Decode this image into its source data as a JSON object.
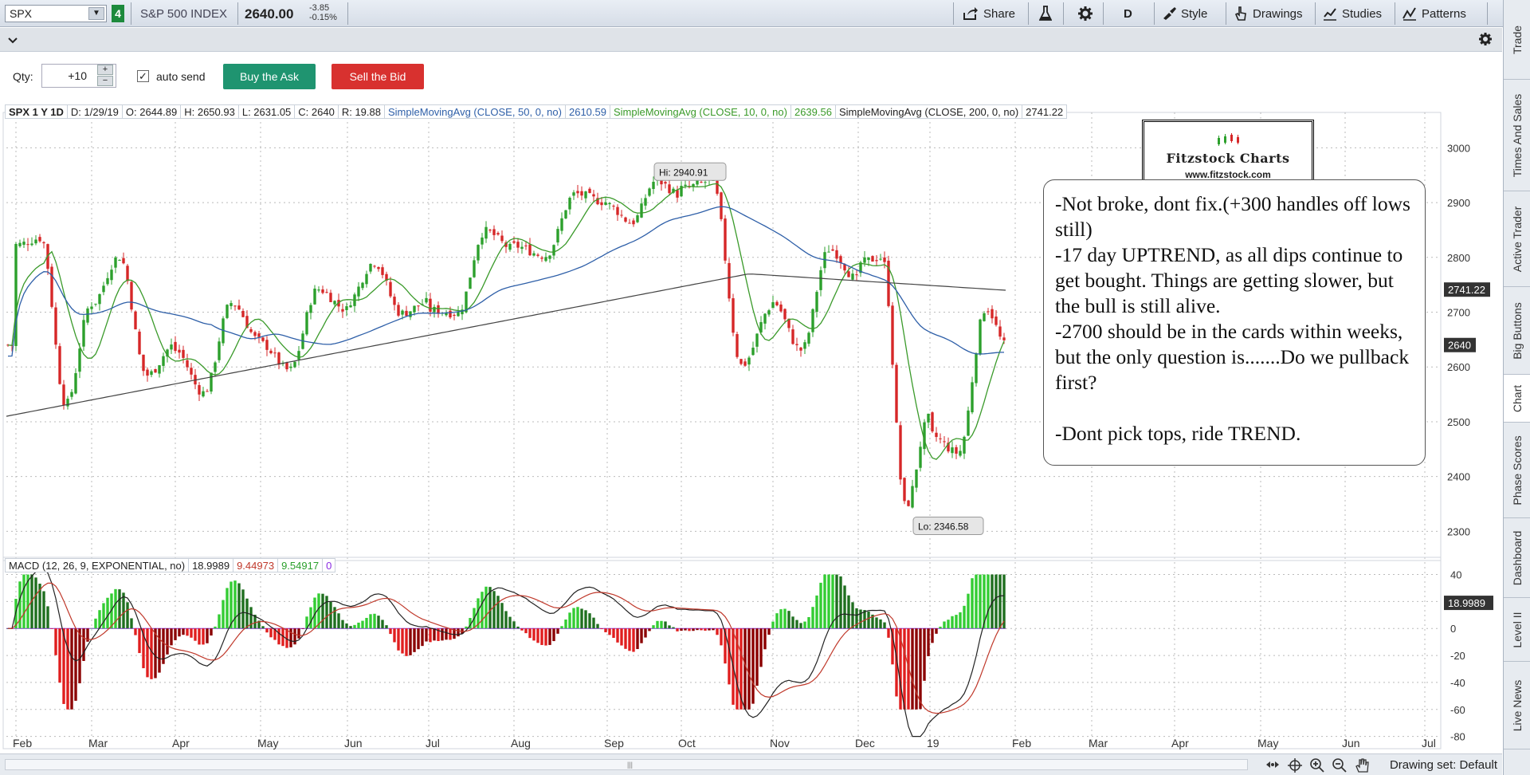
{
  "toolbar": {
    "symbol": "SPX",
    "link_badge": "4",
    "symbol_name": "S&P 500 INDEX",
    "last_price": "2640.00",
    "change": "-3.85",
    "change_pct": "-0.15%",
    "share": "Share",
    "period": "D",
    "style": "Style",
    "drawings": "Drawings",
    "studies": "Studies",
    "patterns": "Patterns"
  },
  "trade": {
    "qty_label": "Qty:",
    "qty_value": "+10",
    "auto_send": "auto send",
    "buy": "Buy the Ask",
    "sell": "Sell the Bid"
  },
  "study_header": {
    "symbol": "SPX 1 Y 1D",
    "date": "D: 1/29/19",
    "open": "O: 2644.89",
    "high": "H: 2650.93",
    "low": "L: 2631.05",
    "close": "C: 2640",
    "range": "R: 19.88",
    "sma50_label": "SimpleMovingAvg (CLOSE, 50, 0, no)",
    "sma50_value": "2610.59",
    "sma10_label": "SimpleMovingAvg (CLOSE, 10, 0, no)",
    "sma10_value": "2639.56",
    "sma200_label": "SimpleMovingAvg (CLOSE, 200, 0, no)",
    "sma200_value": "2741.22"
  },
  "macd_header": {
    "label": "MACD (12, 26, 9, EXPONENTIAL, no)",
    "value": "18.9989",
    "avg": "9.44973",
    "diff": "9.54917",
    "zero": "0"
  },
  "logo": {
    "title": "Fitzstock Charts",
    "url": "www.fitzstock.com"
  },
  "note": {
    "lines": [
      "-Not broke, dont fix.(+300 handles off lows still)",
      "-17 day UPTREND, as all dips continue to get bought.  Things are getting slower, but the bull is still alive.",
      "-2700 should be in  the cards within weeks, but the only question is.......Do we pullback first?",
      "",
      "-Dont pick tops, ride TREND."
    ]
  },
  "price_axis": {
    "ticks": [
      "3000",
      "2900",
      "2800",
      "2700",
      "2600",
      "2500",
      "2400",
      "2300"
    ],
    "badge_sma200": "2741.22",
    "badge_last": "2640"
  },
  "macd_axis": {
    "ticks": [
      "40",
      "20",
      "0",
      "-20",
      "-40",
      "-60",
      "-80"
    ],
    "badge": "18.9989"
  },
  "time_axis": [
    "Feb",
    "Mar",
    "Apr",
    "May",
    "Jun",
    "Jul",
    "Aug",
    "Sep",
    "Oct",
    "Nov",
    "Dec",
    "19",
    "Feb",
    "Mar",
    "Apr",
    "May",
    "Jun",
    "Jul"
  ],
  "labels": {
    "hi": "Hi: 2940.91",
    "lo": "Lo: 2346.58"
  },
  "bottom": {
    "drawing_set": "Drawing set: Default"
  },
  "sidetabs": [
    "Trade",
    "Times And Sales",
    "Active Trader",
    "Big Buttons",
    "Chart",
    "Phase Scores",
    "Dashboard",
    "Level II",
    "Live News"
  ],
  "colors": {
    "up": "#2ca02c",
    "down": "#d62728",
    "sma50": "#2e5fa8",
    "sma10": "#3a9a2a",
    "sma200": "#444444",
    "macd": "#222222",
    "macd_avg": "#c0392b"
  },
  "chart_data": {
    "type": "candlestick",
    "title": "SPX 1 Y 1D",
    "ylim": [
      2270,
      3050
    ],
    "macd_ylim": [
      -82,
      48
    ],
    "monthly": [
      {
        "month": "Feb",
        "open": 2823,
        "high": 2835,
        "low": 2532,
        "close": 2713
      },
      {
        "month": "Mar",
        "open": 2715,
        "high": 2801,
        "low": 2585,
        "close": 2640
      },
      {
        "month": "Apr",
        "open": 2630,
        "high": 2717,
        "low": 2553,
        "close": 2648
      },
      {
        "month": "May",
        "open": 2643,
        "high": 2742,
        "low": 2594,
        "close": 2705
      },
      {
        "month": "Jun",
        "open": 2718,
        "high": 2791,
        "low": 2698,
        "close": 2718
      },
      {
        "month": "Jul",
        "open": 2704,
        "high": 2848,
        "low": 2698,
        "close": 2816
      },
      {
        "month": "Aug",
        "open": 2821,
        "high": 2916,
        "low": 2803,
        "close": 2901
      },
      {
        "month": "Sep",
        "open": 2896,
        "high": 2940,
        "low": 2864,
        "close": 2914
      },
      {
        "month": "Oct",
        "open": 2926,
        "high": 2939,
        "low": 2603,
        "close": 2711
      },
      {
        "month": "Nov",
        "open": 2718,
        "high": 2815,
        "low": 2631,
        "close": 2760
      },
      {
        "month": "Dec",
        "open": 2790,
        "high": 2800,
        "low": 2346,
        "close": 2507
      },
      {
        "month": "Jan",
        "open": 2476,
        "high": 2708,
        "low": 2443,
        "close": 2640
      }
    ],
    "hi": 2940.91,
    "lo": 2346.58
  }
}
